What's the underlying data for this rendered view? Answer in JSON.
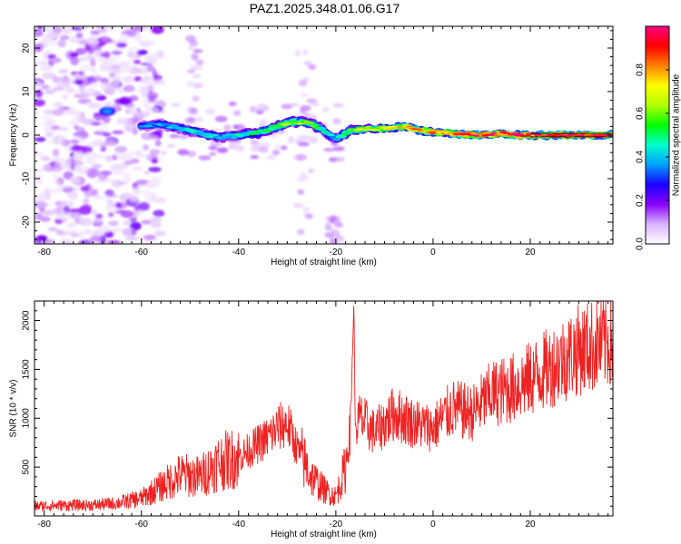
{
  "title": "PAZ1.2025.348.01.06.G17",
  "chart_data": [
    {
      "type": "heatmap",
      "xlabel": "Height of straight line (km)",
      "ylabel": "Frequency (Hz)",
      "xlim": [
        -82,
        37
      ],
      "ylim": [
        -25,
        25
      ],
      "xticks": [
        -80,
        -60,
        -40,
        -20,
        0,
        20
      ],
      "yticks": [
        -20,
        -10,
        0,
        10,
        20
      ],
      "grid": false,
      "colorbar": {
        "label": "Normalized spectral amplitude",
        "range": [
          0,
          1
        ],
        "ticks": [
          "0.0",
          "0.2",
          "0.4",
          "0.6",
          "0.8"
        ],
        "tick_values": [
          0.0,
          0.2,
          0.4,
          0.6,
          0.8
        ],
        "colors": [
          "#ffffff",
          "#d9b3ff",
          "#8a00ff",
          "#1a00ff",
          "#00a0ff",
          "#00ffcc",
          "#00ff00",
          "#b0ff00",
          "#ffff00",
          "#ff8000",
          "#ff0000",
          "#ff0080"
        ]
      },
      "ridge": {
        "x": [
          -60,
          -56,
          -52,
          -48,
          -44,
          -40,
          -36,
          -32,
          -29,
          -26,
          -23,
          -20,
          -17,
          -14,
          -10,
          -6,
          -2,
          2,
          6,
          10,
          14,
          18,
          22,
          26,
          30,
          37
        ],
        "freq": [
          2,
          2.5,
          1.5,
          0.5,
          -0.5,
          0,
          0.5,
          2,
          3,
          3,
          1.5,
          -1,
          1,
          1.5,
          1.5,
          2,
          1,
          0.5,
          0.2,
          0,
          0.3,
          0,
          0,
          0,
          0,
          0
        ],
        "amplitude": [
          0.35,
          0.35,
          0.4,
          0.45,
          0.4,
          0.45,
          0.5,
          0.55,
          0.6,
          0.6,
          0.45,
          0.4,
          0.55,
          0.65,
          0.7,
          0.75,
          0.8,
          0.85,
          0.85,
          0.9,
          0.9,
          0.95,
          0.95,
          0.95,
          0.95,
          0.95
        ]
      },
      "noise_region": [
        -82,
        -58
      ]
    },
    {
      "type": "line",
      "xlabel": "Height of straight line (km)",
      "ylabel": "SNR (10 * v/v)",
      "xlim": [
        -82,
        37
      ],
      "ylim": [
        0,
        2200
      ],
      "xticks": [
        -80,
        -60,
        -40,
        -20,
        0,
        20
      ],
      "yticks": [
        500,
        1000,
        1500,
        2000
      ],
      "grid": false,
      "color": "#ee2222",
      "series": [
        {
          "x": [
            -82,
            -75,
            -70,
            -65,
            -60,
            -56,
            -52,
            -48,
            -44,
            -40,
            -37,
            -34,
            -32,
            -30,
            -28,
            -25,
            -22,
            -20,
            -18,
            -17,
            -16.3,
            -16,
            -15,
            -12,
            -8,
            -4,
            0,
            4,
            8,
            12,
            16,
            20,
            25,
            30,
            37
          ],
          "y": [
            100,
            110,
            110,
            130,
            180,
            300,
            420,
            400,
            550,
            600,
            700,
            800,
            900,
            950,
            700,
            400,
            250,
            200,
            500,
            900,
            2200,
            900,
            1000,
            850,
            1050,
            950,
            900,
            1100,
            1050,
            1250,
            1300,
            1400,
            1550,
            1700,
            1800
          ]
        }
      ]
    }
  ]
}
